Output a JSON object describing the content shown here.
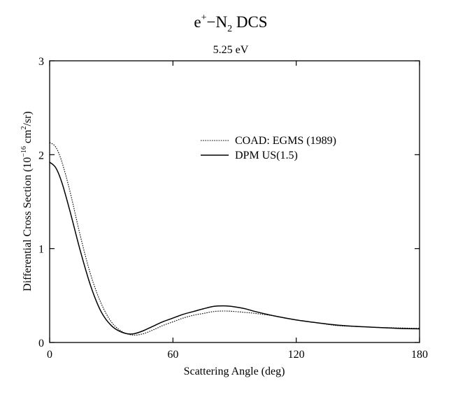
{
  "chart_data": {
    "type": "line",
    "title": {
      "prefix": "e",
      "sup": "+",
      "mid": "−N",
      "sub": "2",
      "suffix": " DCS"
    },
    "subtitle": "5.25 eV",
    "xlabel": "Scattering Angle (deg)",
    "ylabel": {
      "part1": "Differential Cross Section (10",
      "exp": "−16",
      "part2": " cm",
      "exp2": "2",
      "part3": "/sr)"
    },
    "xlim": [
      0,
      180
    ],
    "ylim": [
      0,
      3
    ],
    "xticks": [
      0,
      60,
      120,
      180
    ],
    "xtick_labels": [
      "0",
      "60",
      "120",
      "180"
    ],
    "yticks": [
      0,
      1,
      2,
      3
    ],
    "ytick_labels": [
      "0",
      "1",
      "2",
      "3"
    ],
    "grid": false,
    "legend_position": "upper-right",
    "series": [
      {
        "name": "COAD: EGMS (1989)",
        "style": "dotted",
        "x": [
          0,
          3,
          6,
          10,
          15,
          20,
          25,
          30,
          35,
          40,
          45,
          50,
          55,
          60,
          65,
          70,
          75,
          80,
          85,
          90,
          95,
          100,
          110,
          120,
          130,
          140,
          150,
          160,
          170,
          180
        ],
        "y": [
          2.13,
          2.08,
          1.92,
          1.6,
          1.13,
          0.72,
          0.42,
          0.22,
          0.12,
          0.08,
          0.09,
          0.13,
          0.18,
          0.22,
          0.26,
          0.29,
          0.31,
          0.33,
          0.335,
          0.33,
          0.32,
          0.31,
          0.28,
          0.24,
          0.21,
          0.18,
          0.17,
          0.16,
          0.155,
          0.15
        ]
      },
      {
        "name": "DPM US(1.5)",
        "style": "solid",
        "x": [
          0,
          3,
          6,
          10,
          15,
          20,
          25,
          30,
          35,
          40,
          45,
          50,
          55,
          60,
          65,
          70,
          75,
          80,
          85,
          90,
          95,
          100,
          110,
          120,
          130,
          140,
          150,
          160,
          170,
          180
        ],
        "y": [
          1.92,
          1.86,
          1.7,
          1.39,
          0.97,
          0.6,
          0.33,
          0.18,
          0.11,
          0.09,
          0.12,
          0.17,
          0.22,
          0.26,
          0.3,
          0.33,
          0.36,
          0.385,
          0.39,
          0.38,
          0.36,
          0.33,
          0.28,
          0.24,
          0.21,
          0.185,
          0.17,
          0.16,
          0.15,
          0.145
        ]
      }
    ]
  },
  "colors": {
    "axis": "#000000",
    "series": "#000000",
    "background": "#ffffff"
  }
}
